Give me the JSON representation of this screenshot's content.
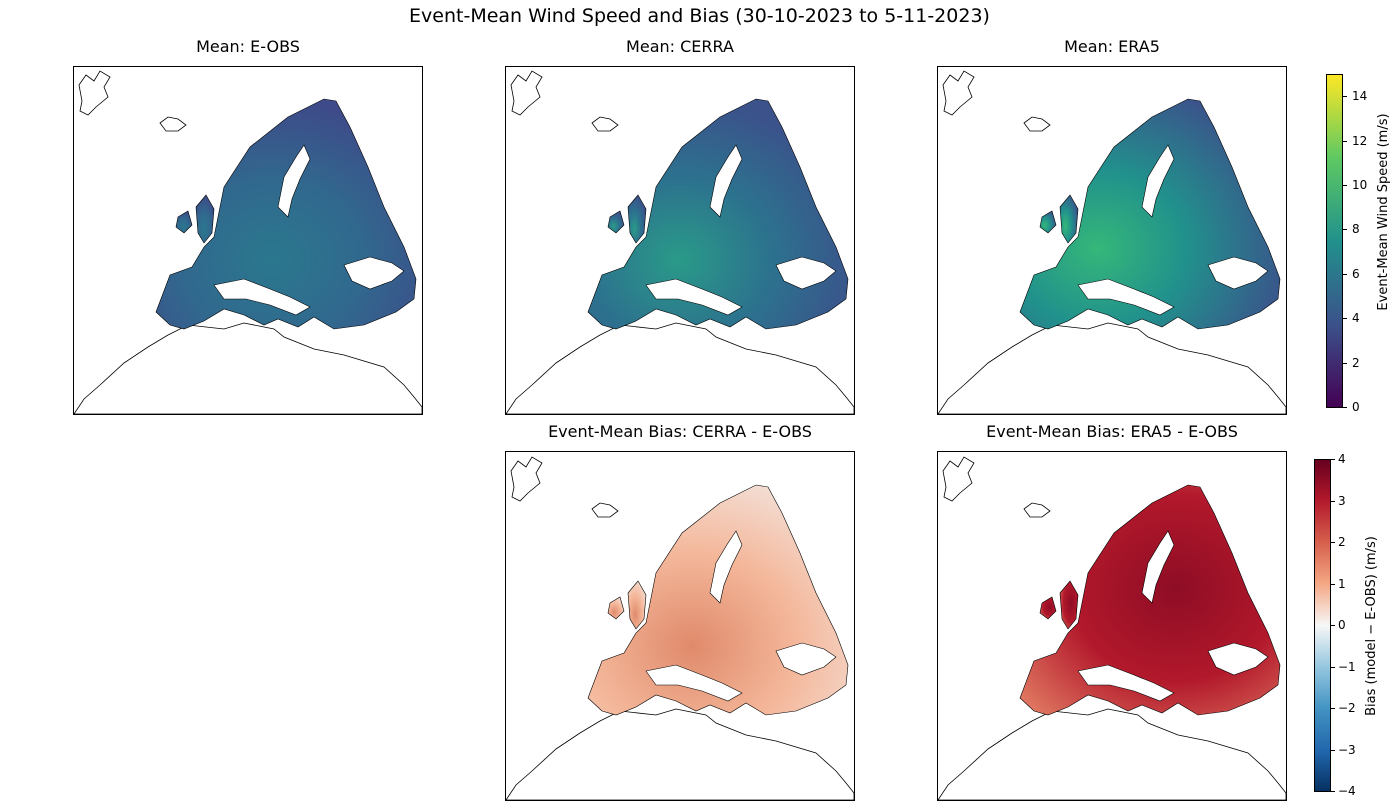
{
  "figure": {
    "title": "Event-Mean Wind Speed and Bias (30-10-2023 to 5-11-2023)"
  },
  "panels": [
    {
      "title": "Mean: E-OBS",
      "kind": "mean",
      "field": "eobs"
    },
    {
      "title": "Mean: CERRA",
      "kind": "mean",
      "field": "cerra"
    },
    {
      "title": "Mean: ERA5",
      "kind": "mean",
      "field": "era5"
    },
    {
      "title": "Event-Mean Bias: CERRA - E-OBS",
      "kind": "bias",
      "field": "cerra_bias"
    },
    {
      "title": "Event-Mean Bias: ERA5 - E-OBS",
      "kind": "bias",
      "field": "era5_bias"
    }
  ],
  "colorbars": {
    "speed": {
      "label": "Event-Mean Wind Speed (m/s)",
      "colormap": "viridis",
      "range": [
        0,
        15
      ],
      "ticks": [
        "0",
        "2",
        "4",
        "6",
        "8",
        "10",
        "12",
        "14"
      ]
    },
    "bias": {
      "label": "Bias (model − E-OBS) (m/s)",
      "colormap": "RdBu_r",
      "range": [
        -4,
        4
      ],
      "ticks": [
        "4",
        "3",
        "2",
        "1",
        "0",
        "−1",
        "−2",
        "−3",
        "−4"
      ]
    }
  },
  "colors": {
    "viridis_low": "#440154",
    "viridis_mid": "#21918c",
    "viridis_high": "#fde725",
    "bias_low": "#053061",
    "bias_zero": "#f7f7f7",
    "bias_high": "#67001f"
  }
}
